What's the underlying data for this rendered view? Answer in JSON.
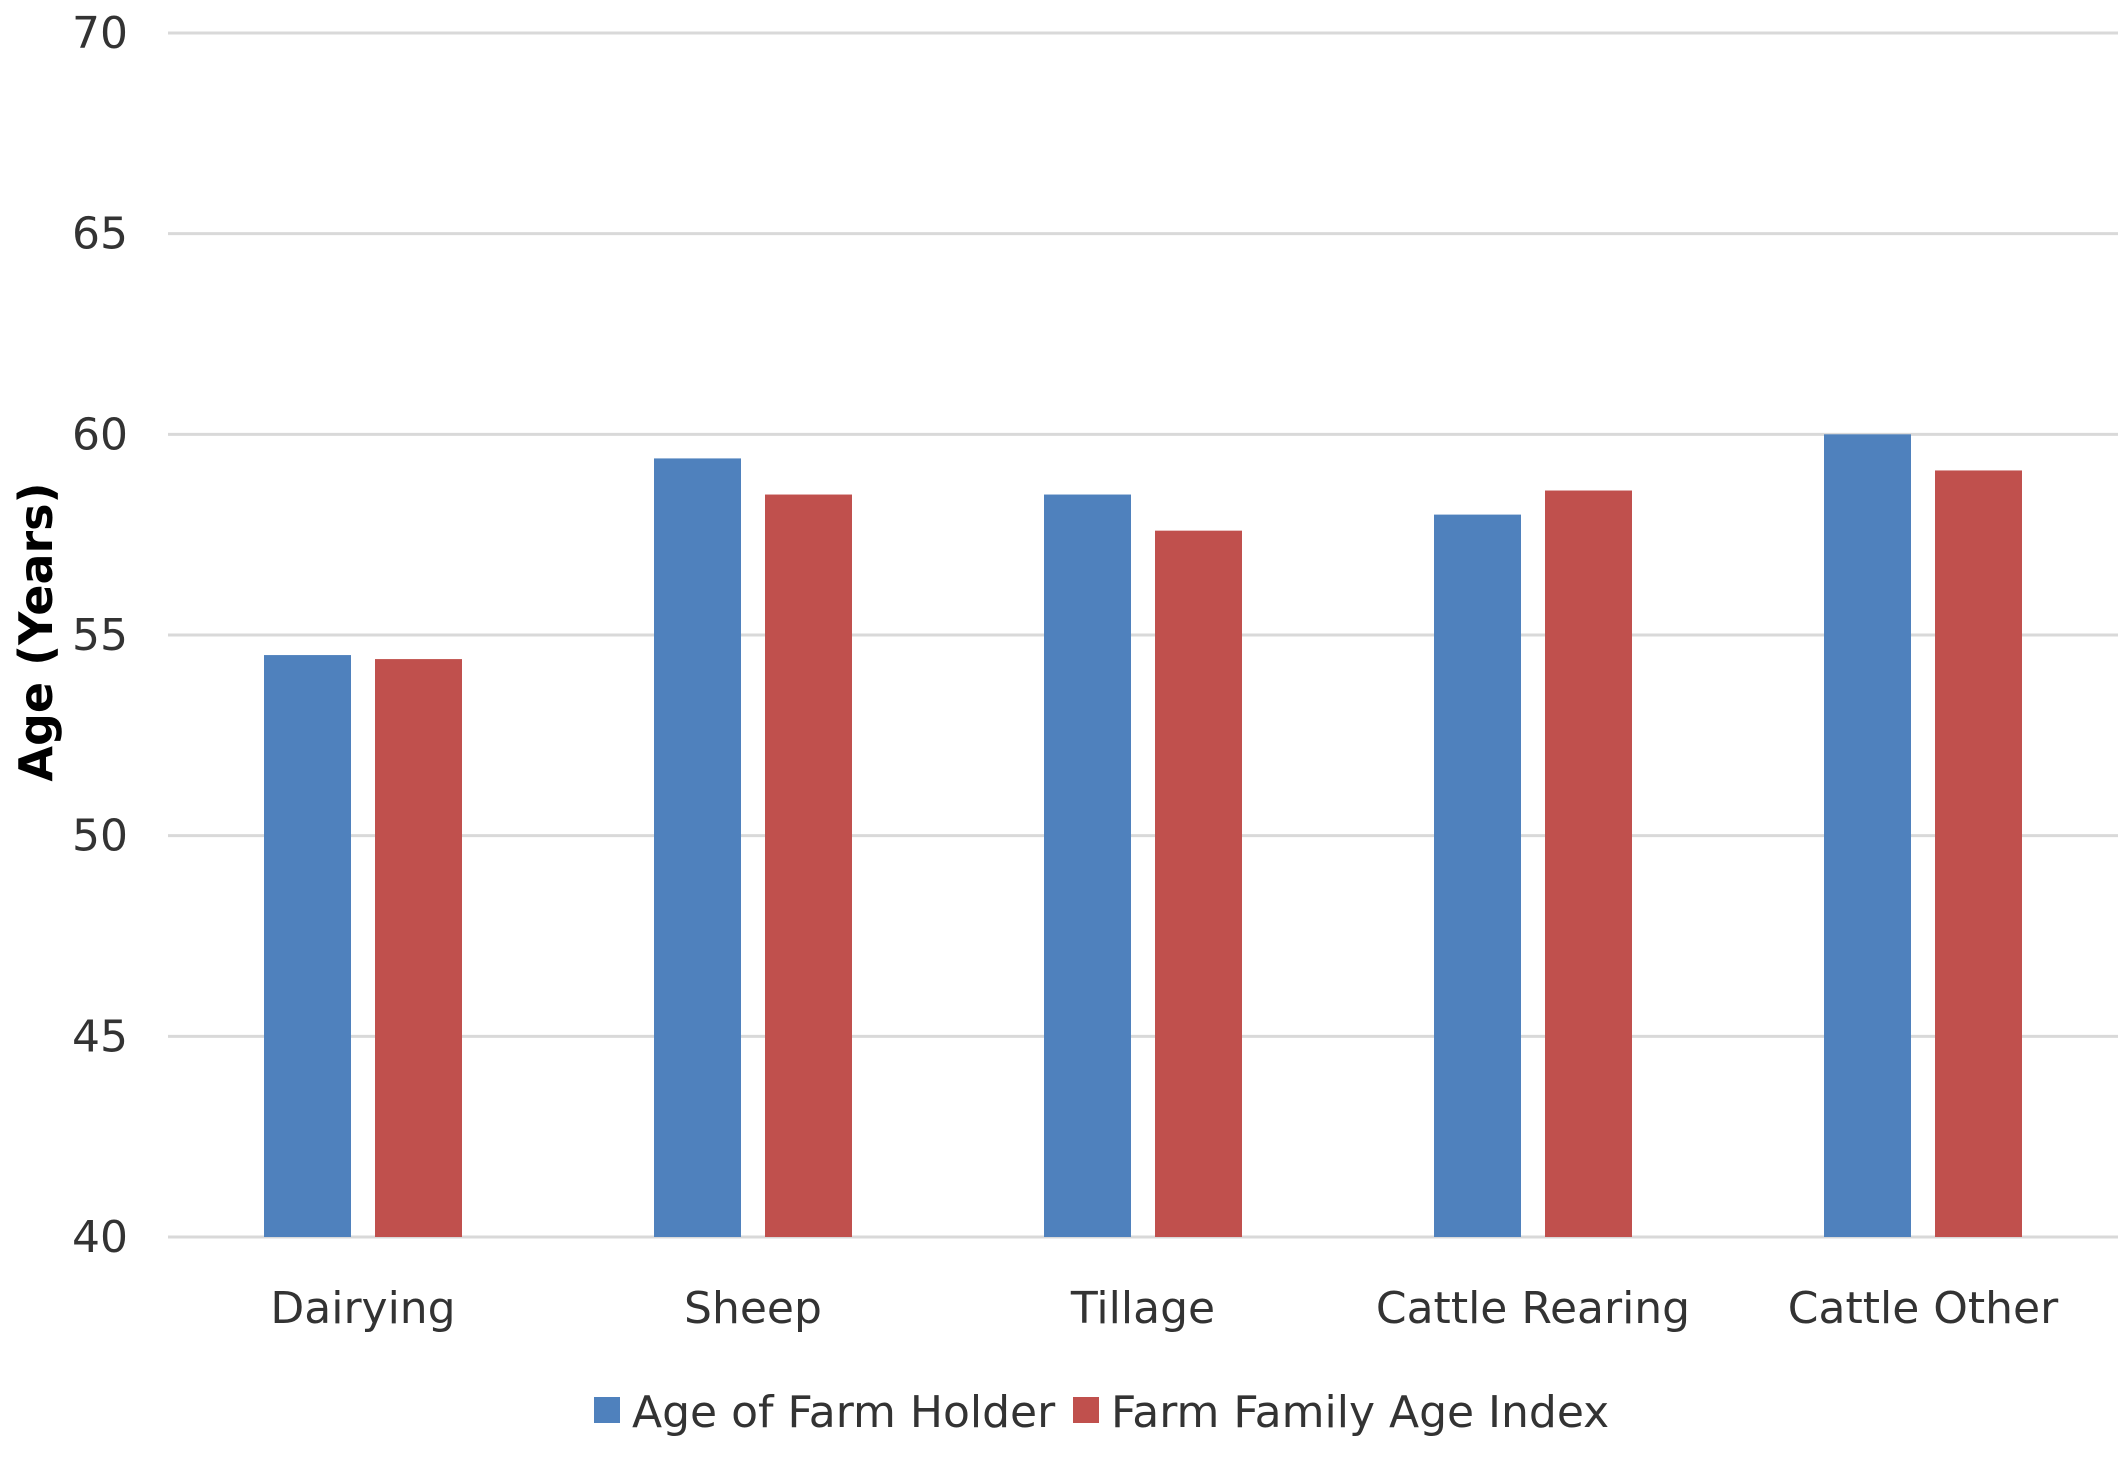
{
  "chart_data": {
    "type": "bar",
    "title": "",
    "xlabel": "",
    "ylabel": "Age (Years)",
    "ylim": [
      40,
      70
    ],
    "yticks": [
      40,
      45,
      50,
      55,
      60,
      65,
      70
    ],
    "ytick_labels": [
      "40",
      "45",
      "50",
      "55",
      "60",
      "65",
      "70"
    ],
    "grid": true,
    "legend_position": "bottom",
    "categories": [
      "Dairying",
      "Sheep",
      "Tillage",
      "Cattle Rearing",
      "Cattle Other"
    ],
    "series": [
      {
        "name": "Age of Farm Holder",
        "color": "#4f81bd",
        "values": [
          54.5,
          59.4,
          58.5,
          58.0,
          60.0
        ]
      },
      {
        "name": "Farm Family Age Index",
        "color": "#c0504d",
        "values": [
          54.4,
          58.5,
          57.6,
          58.6,
          59.1
        ]
      }
    ]
  }
}
